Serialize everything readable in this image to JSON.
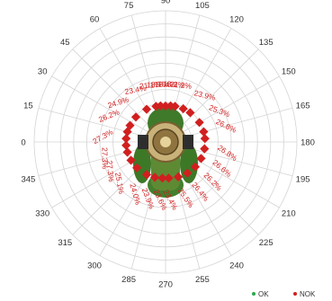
{
  "chart_data": {
    "type": "polar-scatter",
    "angular_ticks": [
      "0",
      "15",
      "30",
      "45",
      "60",
      "75",
      "90",
      "105",
      "120",
      "135",
      "150",
      "165",
      "180",
      "195",
      "210",
      "225",
      "240",
      "255",
      "270",
      "285",
      "300",
      "315",
      "330",
      "345"
    ],
    "grid": true,
    "legend": {
      "position": "bottom-right",
      "entries": [
        {
          "name": "OK",
          "color": "#2aa84a"
        },
        {
          "name": "NOK",
          "color": "#d11f1f"
        }
      ]
    },
    "center_image": "military-vehicle-top-view",
    "series": [
      {
        "name": "NOK",
        "color": "#d11f1f",
        "points": [
          {
            "angle": 75,
            "label": "21.1%"
          },
          {
            "angle": 82,
            "label": "18.7%"
          },
          {
            "angle": 90,
            "label": "18.4%"
          },
          {
            "angle": 98,
            "label": "18.2%"
          },
          {
            "angle": 105,
            "label": "21.2%"
          },
          {
            "angle": 60,
            "label": "23.4%"
          },
          {
            "angle": 40,
            "label": "24.9%"
          },
          {
            "angle": 25,
            "label": "26.2%"
          },
          {
            "angle": 15,
            "label": ""
          },
          {
            "angle": 5,
            "label": "27.3%"
          },
          {
            "angle": 355,
            "label": ""
          },
          {
            "angle": 345,
            "label": "27.3%"
          },
          {
            "angle": 332,
            "label": "27.3%"
          },
          {
            "angle": 318,
            "label": "25.1%"
          },
          {
            "angle": 300,
            "label": "24.0%"
          },
          {
            "angle": 287,
            "label": "23.9%"
          },
          {
            "angle": 275,
            "label": "23.6%"
          },
          {
            "angle": 265,
            "label": "23.4%"
          },
          {
            "angle": 250,
            "label": "25.5%"
          },
          {
            "angle": 235,
            "label": "26.4%"
          },
          {
            "angle": 220,
            "label": "26.2%"
          },
          {
            "angle": 205,
            "label": "26.6%"
          },
          {
            "angle": 190,
            "label": "26.8%"
          },
          {
            "angle": 175,
            "label": ""
          },
          {
            "angle": 165,
            "label": "26.8%"
          },
          {
            "angle": 150,
            "label": "25.3%"
          },
          {
            "angle": 130,
            "label": "23.9%"
          },
          {
            "angle": 118,
            "label": ""
          }
        ]
      }
    ]
  }
}
